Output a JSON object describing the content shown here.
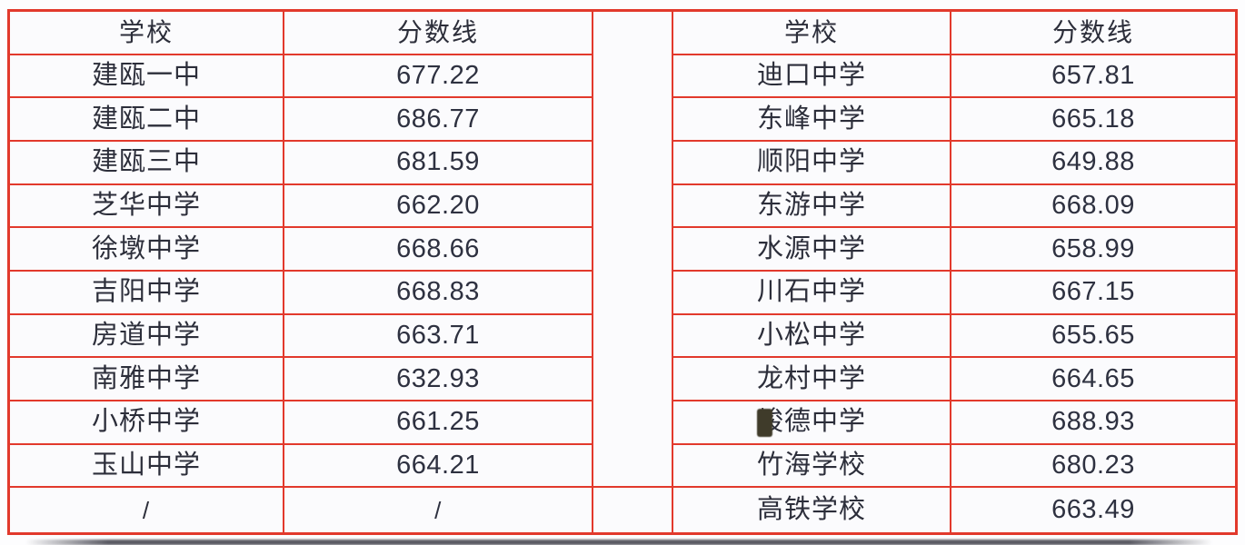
{
  "page": {
    "colors": {
      "border_red": "#e2392c",
      "cell_bg": "#fbfbfd",
      "page_bg": "#fdfdfe",
      "text_dark": "#2c2e3a",
      "artifact_teal": "#3f98a0",
      "artifact_blue": "#4b80c0",
      "artifact_blob": "#3f3b2a",
      "edge_strip": "#50505a"
    }
  },
  "chart_data": [
    {
      "type": "table",
      "columns": [
        "学校",
        "分数线"
      ],
      "rows": [
        [
          "建瓯一中",
          "677.22"
        ],
        [
          "建瓯二中",
          "686.77"
        ],
        [
          "建瓯三中",
          "681.59"
        ],
        [
          "芝华中学",
          "662.20"
        ],
        [
          "徐墩中学",
          "668.66"
        ],
        [
          "吉阳中学",
          "668.83"
        ],
        [
          "房道中学",
          "663.71"
        ],
        [
          "南雅中学",
          "632.93"
        ],
        [
          "小桥中学",
          "661.25"
        ],
        [
          "玉山中学",
          "664.21"
        ],
        [
          "/",
          "/"
        ]
      ]
    },
    {
      "type": "table",
      "columns": [
        "学校",
        "分数线"
      ],
      "rows": [
        [
          "迪口中学",
          "657.81"
        ],
        [
          "东峰中学",
          "665.18"
        ],
        [
          "顺阳中学",
          "649.88"
        ],
        [
          "东游中学",
          "668.09"
        ],
        [
          "水源中学",
          "658.99"
        ],
        [
          "川石中学",
          "667.15"
        ],
        [
          "小松中学",
          "655.65"
        ],
        [
          "龙村中学",
          "664.65"
        ],
        [
          "峻德中学",
          "688.93"
        ],
        [
          "竹海学校",
          "680.23"
        ],
        [
          "高铁学校",
          "663.49"
        ]
      ]
    }
  ]
}
